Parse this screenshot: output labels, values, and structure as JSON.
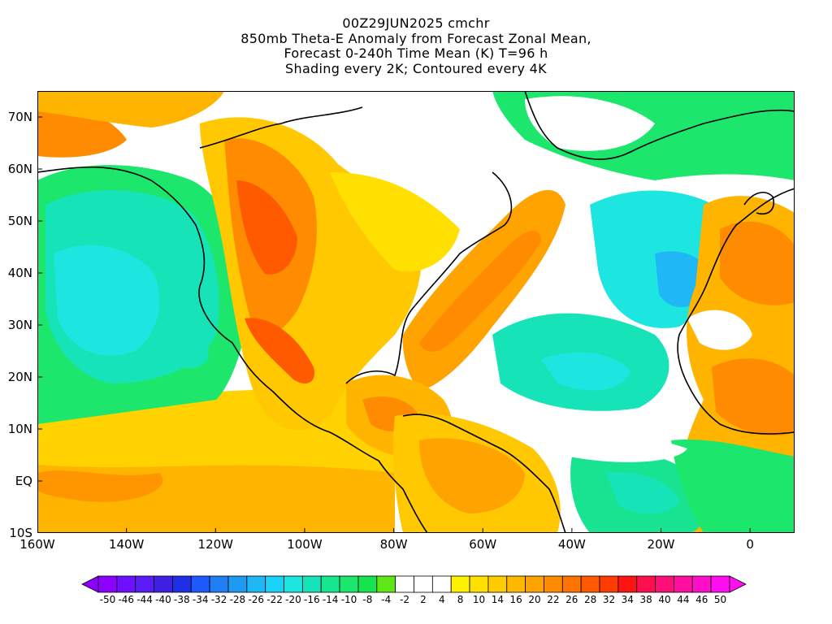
{
  "title": {
    "line1": "00Z29JUN2025 cmchr",
    "line2": "850mb Theta-E Anomaly from Forecast Zonal Mean,",
    "line3": "Forecast 0-240h Time Mean (K) T=96 h",
    "line4": "Shading every 2K; Contoured every 4K"
  },
  "map": {
    "lon_range": [
      -160,
      10
    ],
    "lat_range": [
      -10,
      75
    ],
    "lat_ticks": [
      "70N",
      "60N",
      "50N",
      "40N",
      "30N",
      "20N",
      "10N",
      "EQ",
      "10S"
    ],
    "lon_ticks": [
      "160W",
      "140W",
      "120W",
      "100W",
      "80W",
      "60W",
      "40W",
      "20W",
      "0"
    ]
  },
  "colorbar": {
    "labels": [
      "-50",
      "-46",
      "-44",
      "-40",
      "-38",
      "-34",
      "-32",
      "-28",
      "-26",
      "-22",
      "-20",
      "-16",
      "-14",
      "-10",
      "-8",
      "-4",
      "-2",
      "2",
      "4",
      "8",
      "10",
      "14",
      "16",
      "20",
      "22",
      "26",
      "28",
      "32",
      "34",
      "38",
      "40",
      "44",
      "46",
      "50"
    ],
    "colors": [
      "#8c00ff",
      "#6e10ff",
      "#5a1cf5",
      "#3f21e6",
      "#1f2fe6",
      "#1e5aff",
      "#1f7ff2",
      "#1e9bf0",
      "#1fb7f5",
      "#1ad2f7",
      "#1de6e0",
      "#17e3b8",
      "#17e690",
      "#1ce66b",
      "#17e34e",
      "#5ee617",
      "#ffffff",
      "#ffffff",
      "#ffffff",
      "#fff200",
      "#ffe000",
      "#ffcc00",
      "#ffb800",
      "#ffa300",
      "#ff8c00",
      "#ff7300",
      "#ff5a00",
      "#ff3c00",
      "#ff1414",
      "#ff0f50",
      "#ff0f78",
      "#ff0fa0",
      "#ff0fc8",
      "#ff0ff0"
    ]
  }
}
